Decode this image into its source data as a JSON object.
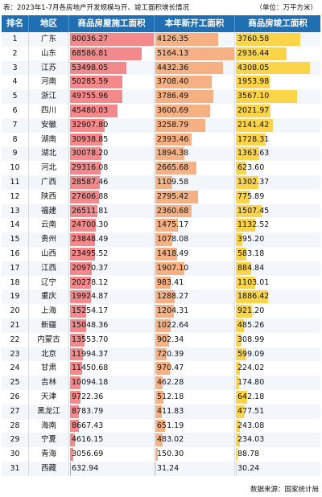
{
  "caption": {
    "title": "表：2023年1-7月各房地产开发规模与开、竣工面积增长情况",
    "unit": "（单位：万平方米）"
  },
  "header": {
    "rank": "排名",
    "region": "地区",
    "col_a": "商品房屋施工面积",
    "col_b": "本年新开工面积",
    "col_c": "商品房竣工面积"
  },
  "colors": {
    "header_bg": "#1f6fb2",
    "bar_a": "#f3898b",
    "bar_b": "#f5b183",
    "bar_c": "#fbd44a"
  },
  "rows": [
    {
      "rank": "1",
      "region": "广东",
      "a": "80036.27",
      "b": "4126.35",
      "c": "3760.58"
    },
    {
      "rank": "2",
      "region": "山东",
      "a": "68586.81",
      "b": "5164.13",
      "c": "2936.44"
    },
    {
      "rank": "3",
      "region": "江苏",
      "a": "53498.05",
      "b": "4432.36",
      "c": "4308.05"
    },
    {
      "rank": "4",
      "region": "河南",
      "a": "50285.59",
      "b": "3708.40",
      "c": "1953.98"
    },
    {
      "rank": "5",
      "region": "浙江",
      "a": "49755.96",
      "b": "3786.49",
      "c": "3567.10"
    },
    {
      "rank": "6",
      "region": "四川",
      "a": "45480.03",
      "b": "3600.69",
      "c": "2021.97"
    },
    {
      "rank": "7",
      "region": "安徽",
      "a": "32907.80",
      "b": "3258.79",
      "c": "2141.42"
    },
    {
      "rank": "8",
      "region": "湖南",
      "a": "30938.85",
      "b": "2393.46",
      "c": "1728.31"
    },
    {
      "rank": "9",
      "region": "湖北",
      "a": "30078.20",
      "b": "1894.38",
      "c": "1363.63"
    },
    {
      "rank": "10",
      "region": "河北",
      "a": "29316.08",
      "b": "2665.68",
      "c": "623.60"
    },
    {
      "rank": "11",
      "region": "广西",
      "a": "28587.46",
      "b": "1109.58",
      "c": "1302.37"
    },
    {
      "rank": "12",
      "region": "陕西",
      "a": "27606.88",
      "b": "2795.42",
      "c": "775.89"
    },
    {
      "rank": "13",
      "region": "福建",
      "a": "26511.81",
      "b": "2360.68",
      "c": "1507.45"
    },
    {
      "rank": "14",
      "region": "云南",
      "a": "24700.30",
      "b": "1475.17",
      "c": "1132.52"
    },
    {
      "rank": "15",
      "region": "贵州",
      "a": "23848.49",
      "b": "1078.08",
      "c": "395.20"
    },
    {
      "rank": "16",
      "region": "山西",
      "a": "23495.52",
      "b": "1418.49",
      "c": "583.18"
    },
    {
      "rank": "17",
      "region": "江西",
      "a": "20970.37",
      "b": "1907.10",
      "c": "884.84"
    },
    {
      "rank": "18",
      "region": "辽宁",
      "a": "20278.12",
      "b": "983.41",
      "c": "1103.01"
    },
    {
      "rank": "19",
      "region": "重庆",
      "a": "19924.87",
      "b": "1288.27",
      "c": "1886.42"
    },
    {
      "rank": "20",
      "region": "上海",
      "a": "15254.17",
      "b": "1204.31",
      "c": "921.20"
    },
    {
      "rank": "21",
      "region": "新疆",
      "a": "15048.36",
      "b": "1022.64",
      "c": "485.26"
    },
    {
      "rank": "22",
      "region": "内蒙古",
      "a": "13553.70",
      "b": "902.34",
      "c": "308.99"
    },
    {
      "rank": "23",
      "region": "北京",
      "a": "11994.37",
      "b": "720.39",
      "c": "599.09"
    },
    {
      "rank": "24",
      "region": "甘肃",
      "a": "11450.68",
      "b": "970.47",
      "c": "224.02"
    },
    {
      "rank": "25",
      "region": "吉林",
      "a": "10094.18",
      "b": "462.28",
      "c": "174.80"
    },
    {
      "rank": "26",
      "region": "天津",
      "a": "9722.36",
      "b": "512.18",
      "c": "642.18"
    },
    {
      "rank": "27",
      "region": "黑龙江",
      "a": "8783.79",
      "b": "411.83",
      "c": "477.51"
    },
    {
      "rank": "28",
      "region": "海南",
      "a": "8667.43",
      "b": "651.19",
      "c": "243.08"
    },
    {
      "rank": "29",
      "region": "宁夏",
      "a": "4616.15",
      "b": "483.02",
      "c": "234.03"
    },
    {
      "rank": "30",
      "region": "青海",
      "a": "3056.69",
      "b": "150.30",
      "c": "88.78"
    },
    {
      "rank": "31",
      "region": "西藏",
      "a": "632.94",
      "b": "31.24",
      "c": "30.24"
    }
  ],
  "footer": {
    "source": "数据来源：国家统计局"
  }
}
